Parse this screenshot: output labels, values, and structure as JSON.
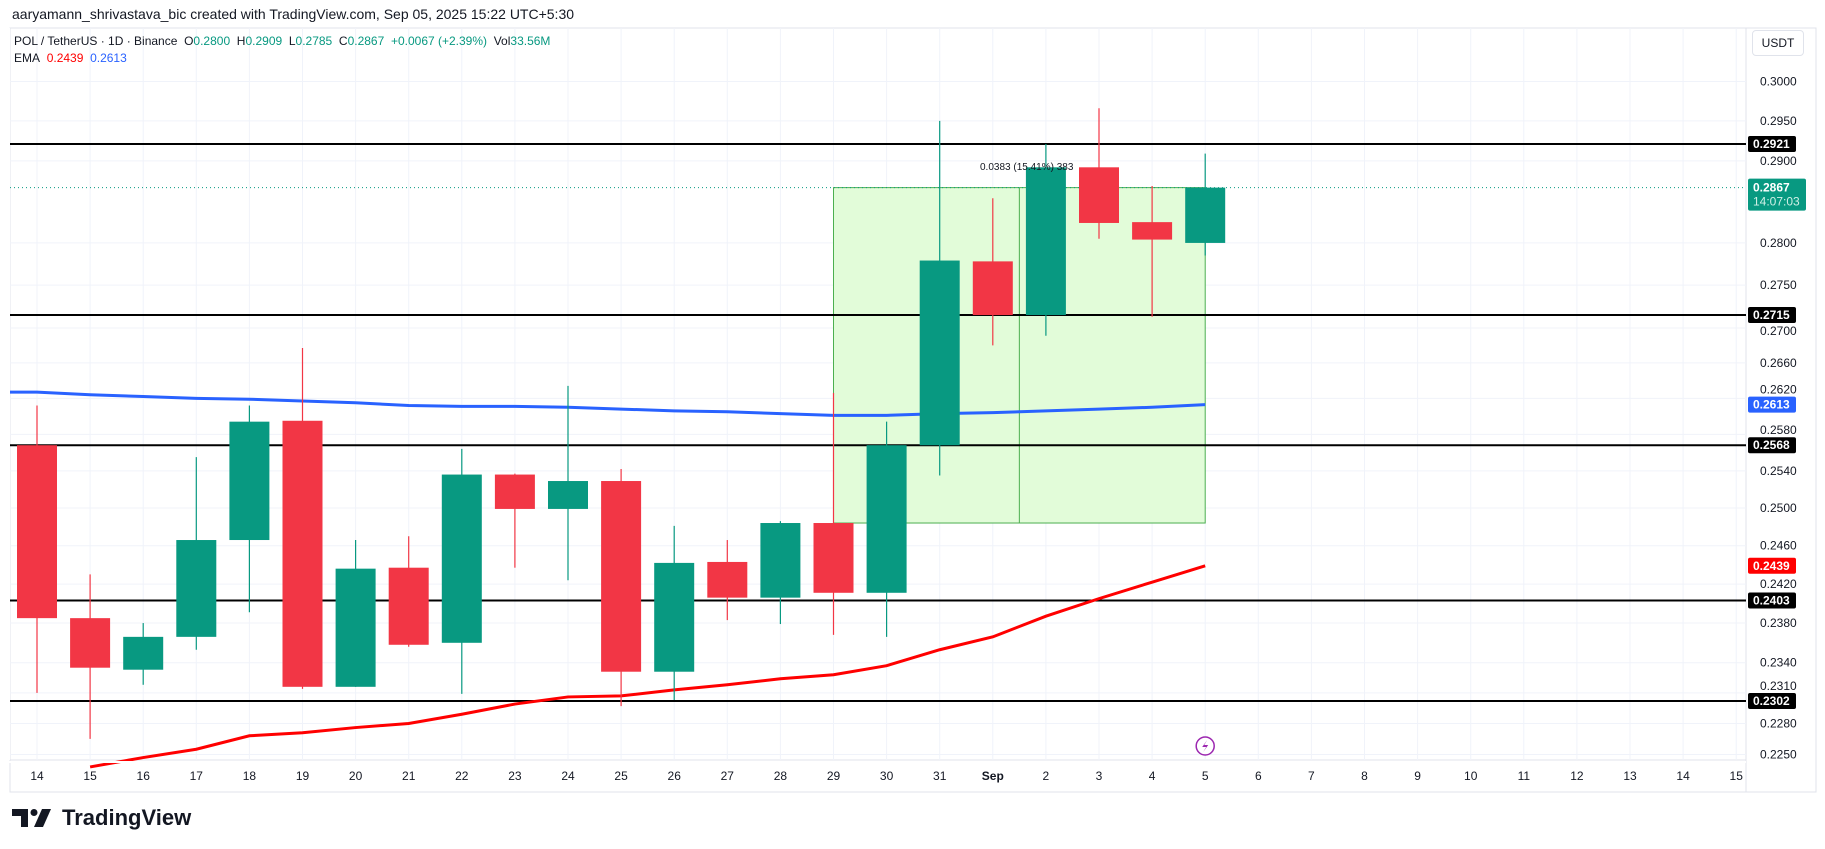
{
  "header": {
    "credit": "aaryamann_shrivastava_bic created with TradingView.com, Sep 05, 2025 15:22 UTC+5:30"
  },
  "legend": {
    "symbol": "POL / TetherUS · 1D · Binance",
    "o_label": "O",
    "o": "0.2800",
    "h_label": "H",
    "h": "0.2909",
    "l_label": "L",
    "l": "0.2785",
    "c_label": "C",
    "c": "0.2867",
    "change": "+0.0067 (+2.39%)",
    "vol_label": "Vol",
    "vol": "33.56M",
    "ema_label": "EMA",
    "ema1": "0.2439",
    "ema2": "0.2613"
  },
  "price_axis": {
    "unit": "USDT"
  },
  "countdown": "14:07:03",
  "measure_label": "0.0383 (15.41%) 383",
  "brand": "TradingView",
  "icons": {
    "event": "lightning-icon",
    "logo": "tradingview-logo"
  },
  "colors": {
    "up": "#089981",
    "down": "#f23645",
    "ema_fast": "#ff0000",
    "ema_slow": "#2962ff",
    "level": "#000000",
    "measure_fill": "#e2fcd9",
    "measure_line": "#4caf50"
  },
  "chart_data": {
    "type": "candlestick",
    "scale": "log",
    "ylim": [
      0.225,
      0.3025
    ],
    "grid": true,
    "y_ticks": [
      "0.3000",
      "0.2950",
      "0.2900",
      "0.2800",
      "0.2750",
      "0.2700",
      "0.2660",
      "0.2620",
      "0.2580",
      "0.2540",
      "0.2500",
      "0.2460",
      "0.2420",
      "0.2380",
      "0.2340",
      "0.2310",
      "0.2280",
      "0.2250"
    ],
    "x_ticks": [
      "14",
      "15",
      "16",
      "17",
      "18",
      "19",
      "20",
      "21",
      "22",
      "23",
      "24",
      "25",
      "26",
      "27",
      "28",
      "29",
      "30",
      "31",
      "Sep",
      "2",
      "3",
      "4",
      "5",
      "6",
      "7",
      "8",
      "9",
      "10",
      "11",
      "12",
      "13",
      "14",
      "15"
    ],
    "candles": [
      {
        "d": "14",
        "o": 0.2568,
        "h": 0.2612,
        "l": 0.231,
        "c": 0.2385
      },
      {
        "d": "15",
        "o": 0.2385,
        "h": 0.243,
        "l": 0.2265,
        "c": 0.2335
      },
      {
        "d": "16",
        "o": 0.2333,
        "h": 0.238,
        "l": 0.2318,
        "c": 0.2366
      },
      {
        "d": "17",
        "o": 0.2366,
        "h": 0.2555,
        "l": 0.2353,
        "c": 0.2466
      },
      {
        "d": "18",
        "o": 0.2466,
        "h": 0.2612,
        "l": 0.2391,
        "c": 0.2594
      },
      {
        "d": "19",
        "o": 0.2595,
        "h": 0.2677,
        "l": 0.2314,
        "c": 0.2316
      },
      {
        "d": "20",
        "o": 0.2316,
        "h": 0.2466,
        "l": 0.2316,
        "c": 0.2436
      },
      {
        "d": "21",
        "o": 0.2437,
        "h": 0.247,
        "l": 0.2356,
        "c": 0.2358
      },
      {
        "d": "22",
        "o": 0.236,
        "h": 0.2564,
        "l": 0.2309,
        "c": 0.2536
      },
      {
        "d": "23",
        "o": 0.2536,
        "h": 0.2537,
        "l": 0.2437,
        "c": 0.2499
      },
      {
        "d": "24",
        "o": 0.2499,
        "h": 0.2634,
        "l": 0.2424,
        "c": 0.2529
      },
      {
        "d": "25",
        "o": 0.2529,
        "h": 0.2542,
        "l": 0.2297,
        "c": 0.2331
      },
      {
        "d": "26",
        "o": 0.2331,
        "h": 0.2481,
        "l": 0.2303,
        "c": 0.2442
      },
      {
        "d": "27",
        "o": 0.2443,
        "h": 0.2466,
        "l": 0.2383,
        "c": 0.2406
      },
      {
        "d": "28",
        "o": 0.2406,
        "h": 0.2486,
        "l": 0.2379,
        "c": 0.2484
      },
      {
        "d": "29",
        "o": 0.2484,
        "h": 0.2626,
        "l": 0.2368,
        "c": 0.2411
      },
      {
        "d": "30",
        "o": 0.2411,
        "h": 0.2594,
        "l": 0.2366,
        "c": 0.2568
      },
      {
        "d": "31",
        "o": 0.2568,
        "h": 0.295,
        "l": 0.2535,
        "c": 0.2779
      },
      {
        "d": "Sep 1",
        "o": 0.2778,
        "h": 0.2854,
        "l": 0.268,
        "c": 0.2715
      },
      {
        "d": "2",
        "o": 0.2715,
        "h": 0.2921,
        "l": 0.2691,
        "c": 0.2892
      },
      {
        "d": "3",
        "o": 0.2892,
        "h": 0.2966,
        "l": 0.2805,
        "c": 0.2824
      },
      {
        "d": "4",
        "o": 0.2825,
        "h": 0.2869,
        "l": 0.2713,
        "c": 0.2804
      },
      {
        "d": "5",
        "o": 0.28,
        "h": 0.2909,
        "l": 0.2785,
        "c": 0.2867
      }
    ],
    "series": [
      {
        "name": "EMA",
        "color": "#ff0000",
        "start_index": 1,
        "values": [
          0.2238,
          0.2247,
          0.2255,
          0.2268,
          0.2271,
          0.2276,
          0.228,
          0.2289,
          0.2299,
          0.2306,
          0.2307,
          0.2313,
          0.2318,
          0.2324,
          0.2328,
          0.2337,
          0.2353,
          0.2366,
          0.2387,
          0.2405,
          0.2422,
          0.2439
        ]
      },
      {
        "name": "EMA",
        "color": "#2962ff",
        "start_index": 0,
        "values": [
          0.2627,
          0.2624,
          0.2622,
          0.262,
          0.2619,
          0.2617,
          0.2615,
          0.2612,
          0.2611,
          0.2611,
          0.261,
          0.2608,
          0.2606,
          0.2605,
          0.2603,
          0.2601,
          0.2601,
          0.2603,
          0.2604,
          0.2606,
          0.2608,
          0.261,
          0.2613
        ]
      }
    ],
    "levels": [
      0.2921,
      0.2715,
      0.2568,
      0.2403,
      0.2302
    ],
    "last_price": 0.2867,
    "measure": {
      "from": "29",
      "to": "5",
      "low": 0.2484,
      "high": 0.2867
    }
  }
}
